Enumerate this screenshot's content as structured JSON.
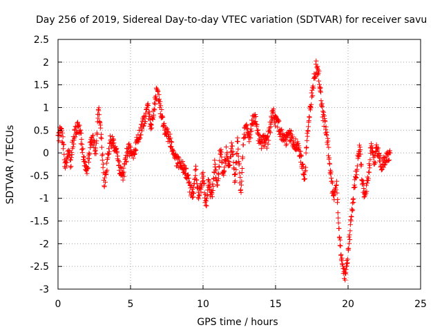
{
  "chart_data": {
    "type": "scatter",
    "title": "Day 256 of 2019, Sidereal Day-to-day VTEC variation (SDTVAR) for receiver savu",
    "xlabel": "GPS time / hours",
    "ylabel": "SDTVAR / TECUs",
    "xlim": [
      0,
      25
    ],
    "ylim": [
      -3,
      2.5
    ],
    "x_ticks": [
      "0",
      "5",
      "10",
      "15",
      "20",
      "25"
    ],
    "y_ticks": [
      "2.5",
      "2",
      "1.5",
      "1",
      "0.5",
      "0",
      "-0.5",
      "-1",
      "-1.5",
      "-2",
      "-2.5",
      "-3"
    ],
    "grid": true,
    "marker": "plus",
    "color": "#ff0000",
    "series": [
      {
        "name": "SDTVAR",
        "trace": [
          [
            0.0,
            0.35
          ],
          [
            0.2,
            0.5
          ],
          [
            0.4,
            0.1
          ],
          [
            0.5,
            -0.35
          ],
          [
            0.7,
            0.05
          ],
          [
            0.9,
            -0.3
          ],
          [
            1.0,
            0.2
          ],
          [
            1.2,
            0.5
          ],
          [
            1.4,
            0.6
          ],
          [
            1.6,
            0.3
          ],
          [
            1.8,
            -0.2
          ],
          [
            2.0,
            -0.4
          ],
          [
            2.2,
            0.1
          ],
          [
            2.4,
            0.3
          ],
          [
            2.6,
            0.0
          ],
          [
            2.8,
            1.05
          ],
          [
            3.0,
            0.2
          ],
          [
            3.2,
            -0.7
          ],
          [
            3.4,
            -0.2
          ],
          [
            3.6,
            0.3
          ],
          [
            3.8,
            0.2
          ],
          [
            4.0,
            0.1
          ],
          [
            4.2,
            -0.3
          ],
          [
            4.5,
            -0.5
          ],
          [
            4.8,
            0.1
          ],
          [
            5.2,
            0.0
          ],
          [
            5.6,
            0.4
          ],
          [
            5.9,
            0.7
          ],
          [
            6.2,
            1.0
          ],
          [
            6.4,
            0.6
          ],
          [
            6.6,
            0.9
          ],
          [
            6.8,
            1.35
          ],
          [
            7.0,
            1.1
          ],
          [
            7.2,
            0.7
          ],
          [
            7.4,
            0.5
          ],
          [
            7.7,
            0.3
          ],
          [
            8.0,
            -0.1
          ],
          [
            8.3,
            -0.2
          ],
          [
            8.6,
            -0.3
          ],
          [
            8.9,
            -0.5
          ],
          [
            9.1,
            -0.8
          ],
          [
            9.3,
            -0.9
          ],
          [
            9.5,
            -0.4
          ],
          [
            9.7,
            -1.0
          ],
          [
            10.0,
            -0.5
          ],
          [
            10.2,
            -1.2
          ],
          [
            10.4,
            -0.6
          ],
          [
            10.6,
            -1.0
          ],
          [
            10.8,
            -0.3
          ],
          [
            11.0,
            -0.7
          ],
          [
            11.2,
            0.1
          ],
          [
            11.4,
            -0.5
          ],
          [
            11.6,
            0.0
          ],
          [
            11.8,
            -0.3
          ],
          [
            12.0,
            0.2
          ],
          [
            12.2,
            -0.6
          ],
          [
            12.4,
            0.3
          ],
          [
            12.6,
            -0.9
          ],
          [
            12.8,
            0.4
          ],
          [
            13.0,
            0.5
          ],
          [
            13.2,
            0.3
          ],
          [
            13.4,
            0.7
          ],
          [
            13.6,
            0.8
          ],
          [
            13.8,
            0.4
          ],
          [
            14.0,
            0.2
          ],
          [
            14.2,
            0.3
          ],
          [
            14.4,
            0.2
          ],
          [
            14.6,
            0.5
          ],
          [
            14.8,
            0.9
          ],
          [
            15.0,
            0.7
          ],
          [
            15.2,
            0.6
          ],
          [
            15.4,
            0.4
          ],
          [
            15.7,
            0.3
          ],
          [
            16.0,
            0.4
          ],
          [
            16.3,
            0.2
          ],
          [
            16.6,
            0.1
          ],
          [
            16.8,
            -0.2
          ],
          [
            17.0,
            -0.6
          ],
          [
            17.2,
            0.4
          ],
          [
            17.4,
            1.0
          ],
          [
            17.6,
            1.5
          ],
          [
            17.8,
            1.9
          ],
          [
            18.0,
            1.7
          ],
          [
            18.2,
            1.0
          ],
          [
            18.4,
            0.6
          ],
          [
            18.6,
            0.2
          ],
          [
            18.8,
            -0.5
          ],
          [
            19.0,
            -1.0
          ],
          [
            19.2,
            -0.6
          ],
          [
            19.4,
            -1.8
          ],
          [
            19.6,
            -2.5
          ],
          [
            19.8,
            -2.7
          ],
          [
            20.0,
            -2.2
          ],
          [
            20.2,
            -1.5
          ],
          [
            20.4,
            -0.9
          ],
          [
            20.6,
            -0.3
          ],
          [
            20.8,
            0.1
          ],
          [
            21.0,
            -0.7
          ],
          [
            21.2,
            -1.0
          ],
          [
            21.4,
            -0.5
          ],
          [
            21.6,
            0.2
          ],
          [
            21.8,
            -0.2
          ],
          [
            22.0,
            0.1
          ],
          [
            22.3,
            -0.3
          ],
          [
            22.6,
            -0.1
          ],
          [
            22.9,
            0.0
          ]
        ]
      }
    ]
  }
}
